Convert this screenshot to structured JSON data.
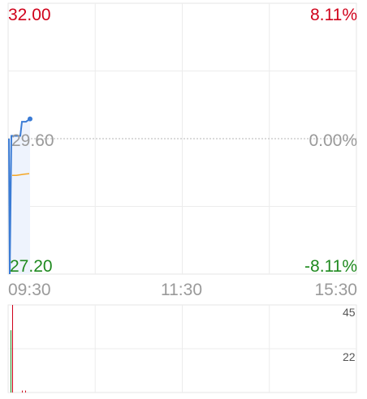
{
  "chart_data": [
    {
      "type": "line",
      "title": "",
      "y_axis_left": {
        "max": "32.00",
        "mid": "29.60",
        "min": "27.20"
      },
      "y_axis_right": {
        "max": "8.11%",
        "mid": "0.00%",
        "min": "-8.11%"
      },
      "ylim": [
        27.2,
        32.0
      ],
      "reference_price": 29.6,
      "x_ticks": [
        "09:30",
        "11:30",
        "15:30"
      ],
      "series": [
        {
          "values": [
            29.6,
            27.2,
            29.65,
            29.65,
            29.65,
            29.9,
            29.9,
            29.95
          ],
          "color": "#3a7bd5"
        },
        {
          "values": [
            28.95,
            28.95,
            28.96,
            28.97,
            28.98
          ],
          "color": "#f5a623"
        }
      ],
      "colors": {
        "up": "#d0021b",
        "down": "#1f8a1f",
        "price_line": "#3a7bd5",
        "avg_line": "#f5a623"
      }
    },
    {
      "type": "bar",
      "title": "",
      "y_ticks": [
        "45",
        "22"
      ],
      "ylim": [
        0,
        45
      ],
      "values": [
        45,
        32,
        1,
        1
      ],
      "bar_colors": [
        "#d0021b",
        "#1f8a1f",
        "#d0021b",
        "#d0021b"
      ]
    }
  ]
}
